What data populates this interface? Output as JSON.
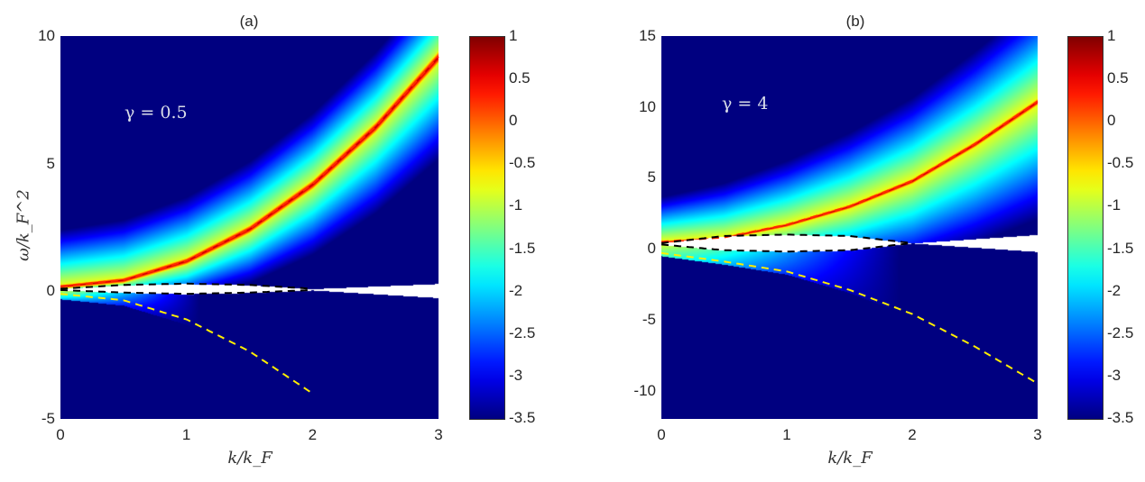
{
  "chart_data": [
    {
      "type": "heatmap",
      "title": "(a)",
      "annotation": "γ = 0.5",
      "xlabel": "k/k_F",
      "ylabel": "ω/k_F^2",
      "xlim": [
        0,
        3
      ],
      "ylim": [
        -5,
        10
      ],
      "xticks": [
        "0",
        "1",
        "2",
        "3"
      ],
      "yticks": [
        "10",
        "5",
        "0",
        "-5"
      ],
      "colormap": "jet",
      "clim": [
        -3.5,
        1
      ],
      "colorbar_ticks": [
        "1",
        "0.5",
        "0",
        "-0.5",
        "-1",
        "-1.5",
        "-2",
        "-2.5",
        "-3",
        "-3.5"
      ],
      "upper_branch": {
        "k": [
          0,
          0.5,
          1,
          1.5,
          2,
          2.5,
          3
        ],
        "omega": [
          0.2,
          0.45,
          1.2,
          2.45,
          4.2,
          6.45,
          9.2
        ],
        "style": "red dashed"
      },
      "lower_branch": {
        "k": [
          0,
          0.5,
          1,
          1.5,
          2
        ],
        "omega": [
          -0.1,
          -0.35,
          -1.1,
          -2.35,
          -4.0
        ],
        "style": "yellow dashed"
      },
      "gap_branches": {
        "k": [
          0,
          0.5,
          1,
          1.5,
          2
        ],
        "upper": [
          0.1,
          0.25,
          0.3,
          0.25,
          0.1
        ],
        "lower": [
          0.05,
          -0.05,
          -0.1,
          -0.05,
          0.05
        ],
        "style": "black dashed"
      }
    },
    {
      "type": "heatmap",
      "title": "(b)",
      "annotation": "γ = 4",
      "xlabel": "k/k_F",
      "ylabel": "",
      "xlim": [
        0,
        3
      ],
      "ylim": [
        -12,
        15
      ],
      "xticks": [
        "0",
        "1",
        "2",
        "3"
      ],
      "yticks": [
        "15",
        "10",
        "5",
        "0",
        "-5",
        "-10"
      ],
      "colormap": "jet",
      "clim": [
        -3.5,
        1
      ],
      "colorbar_ticks": [
        "1",
        "0.5",
        "0",
        "-0.5",
        "-1",
        "-1.5",
        "-2",
        "-2.5",
        "-3",
        "-3.5"
      ],
      "upper_branch": {
        "k": [
          0,
          0.5,
          1,
          1.5,
          2,
          2.5,
          3
        ],
        "omega": [
          0.5,
          0.8,
          1.7,
          3.0,
          4.8,
          7.4,
          10.4
        ],
        "style": "red dashed"
      },
      "lower_branch": {
        "k": [
          0,
          0.5,
          1,
          1.5,
          2,
          2.5,
          3
        ],
        "omega": [
          -0.3,
          -0.9,
          -1.6,
          -2.9,
          -4.6,
          -6.9,
          -9.5
        ],
        "style": "yellow dashed"
      },
      "gap_branches": {
        "k": [
          0,
          0.5,
          1,
          1.5,
          2
        ],
        "upper": [
          0.4,
          0.9,
          1.0,
          0.9,
          0.4
        ],
        "lower": [
          0.3,
          -0.1,
          -0.2,
          -0.1,
          0.4
        ],
        "style": "black dashed"
      }
    }
  ]
}
